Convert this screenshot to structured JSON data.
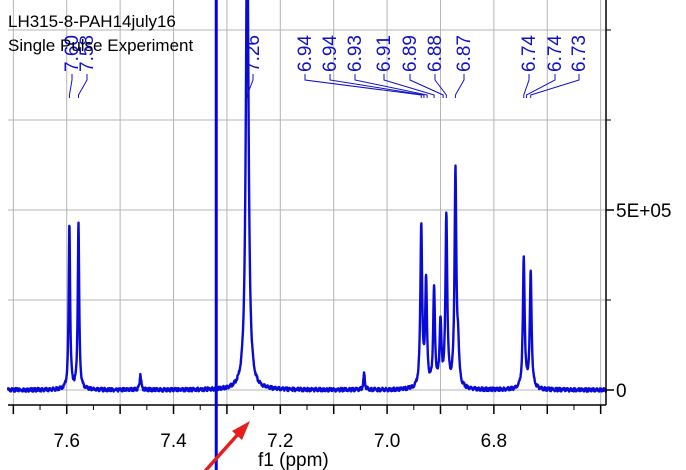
{
  "header": {
    "line1": "LH315-8-PAH14july16",
    "line2": "Single Pulse Experiment"
  },
  "chart_data": {
    "type": "line",
    "title": "LH315-8-PAH14july16",
    "subtitle": "Single Pulse Experiment",
    "xlabel": "f1 (ppm)",
    "xlim": [
      7.71,
      6.59
    ],
    "x_reversed": true,
    "x_ticks": [
      7.6,
      7.4,
      7.2,
      7.0,
      6.8
    ],
    "x_tick_labels": [
      "7.6",
      "7.4",
      "7.2",
      "7.0",
      "6.8"
    ],
    "ylim": [
      -20000,
      1400000
    ],
    "y_ticks": [
      0,
      500000
    ],
    "y_tick_labels": [
      "0",
      "5E+05"
    ],
    "grid": true,
    "peak_labels": [
      "7.60",
      "7.58",
      "7.26",
      "6.94",
      "6.94",
      "6.93",
      "6.91",
      "6.89",
      "6.88",
      "6.87",
      "6.74",
      "6.74",
      "6.73"
    ],
    "peak_label_positions": [
      7.6,
      7.58,
      7.26,
      6.94,
      6.94,
      6.93,
      6.91,
      6.89,
      6.88,
      6.87,
      6.74,
      6.74,
      6.73
    ],
    "series": [
      {
        "peaks": [
          {
            "x": 7.595,
            "y": 460000,
            "w": 0.0016
          },
          {
            "x": 7.578,
            "y": 460000,
            "w": 0.0016
          },
          {
            "x": 7.462,
            "y": 45000,
            "w": 0.0016
          },
          {
            "x": 7.262,
            "y": 1330000,
            "w": 0.003
          },
          {
            "x": 7.043,
            "y": 45000,
            "w": 0.0016
          },
          {
            "x": 6.936,
            "y": 450000,
            "w": 0.002
          },
          {
            "x": 6.927,
            "y": 290000,
            "w": 0.002
          },
          {
            "x": 6.912,
            "y": 270000,
            "w": 0.002
          },
          {
            "x": 6.9,
            "y": 180000,
            "w": 0.002
          },
          {
            "x": 6.889,
            "y": 480000,
            "w": 0.002
          },
          {
            "x": 6.872,
            "y": 600000,
            "w": 0.002
          },
          {
            "x": 6.867,
            "y": 100000,
            "w": 0.002
          },
          {
            "x": 6.744,
            "y": 360000,
            "w": 0.002
          },
          {
            "x": 6.731,
            "y": 320000,
            "w": 0.002
          }
        ]
      }
    ],
    "annotations": {
      "vertical_marker_ppm": 7.32
    },
    "colors": {
      "spectrum": "#0a0ad8",
      "labels": "#1010c8",
      "grid": "#b4b4b4",
      "marker": "#0000e6",
      "arrow": "#e61e1e"
    }
  }
}
